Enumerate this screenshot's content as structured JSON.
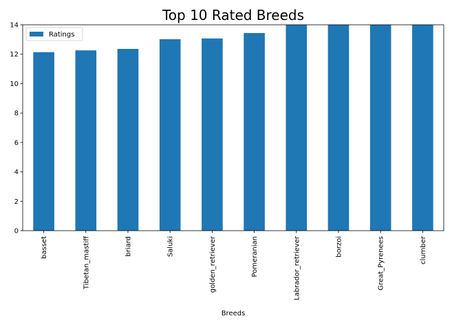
{
  "chart_data": {
    "type": "bar",
    "title": "Top 10 Rated Breeds",
    "xlabel": "Breeds",
    "ylabel": "",
    "categories": [
      "basset",
      "Tibetan_mastiff",
      "briard",
      "Saluki",
      "golden_retriever",
      "Pomeranian",
      "Labrador_retriever",
      "borzoi",
      "Great_Pyrenees",
      "clumber"
    ],
    "series": [
      {
        "name": "Ratings",
        "values": [
          12.14,
          12.26,
          12.36,
          13.02,
          13.07,
          13.44,
          14.0,
          14.0,
          14.0,
          14.0
        ],
        "color": "#1f77b4"
      }
    ],
    "ylim": [
      0,
      14
    ],
    "yticks": [
      0,
      2,
      4,
      6,
      8,
      10,
      12,
      14
    ],
    "grid": false,
    "legend": "top-left"
  }
}
